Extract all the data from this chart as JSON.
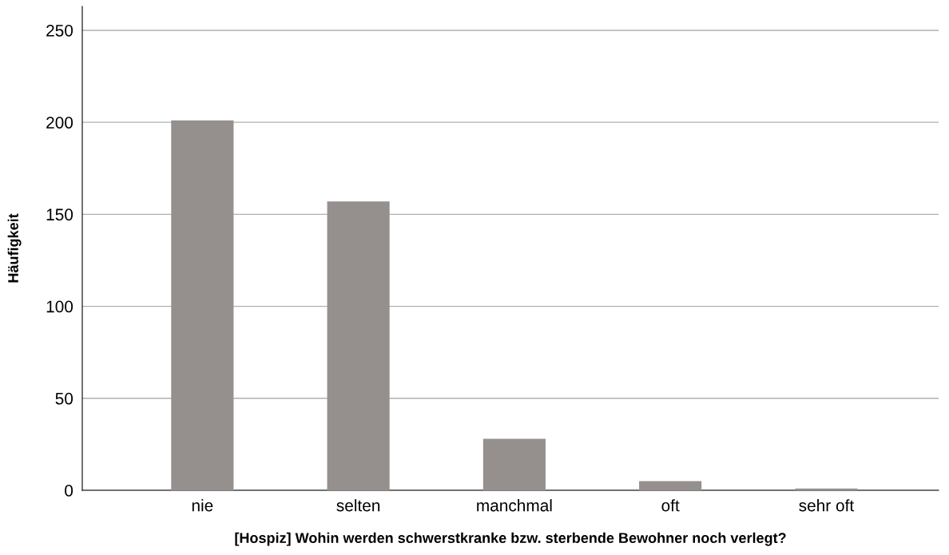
{
  "chart_data": {
    "type": "bar",
    "xlabel": "[Hospiz] Wohin werden schwerstkranke bzw. sterbende Bewohner noch verlegt?",
    "ylabel": "Häufigkeit",
    "categories": [
      "nie",
      "selten",
      "manchmal",
      "oft",
      "sehr oft"
    ],
    "values": [
      201,
      157,
      28,
      5,
      1
    ],
    "color": "#958f8e",
    "ylim": [
      0,
      263
    ],
    "yticks": [
      0,
      50,
      100,
      150,
      200,
      250
    ],
    "grid": "y"
  }
}
